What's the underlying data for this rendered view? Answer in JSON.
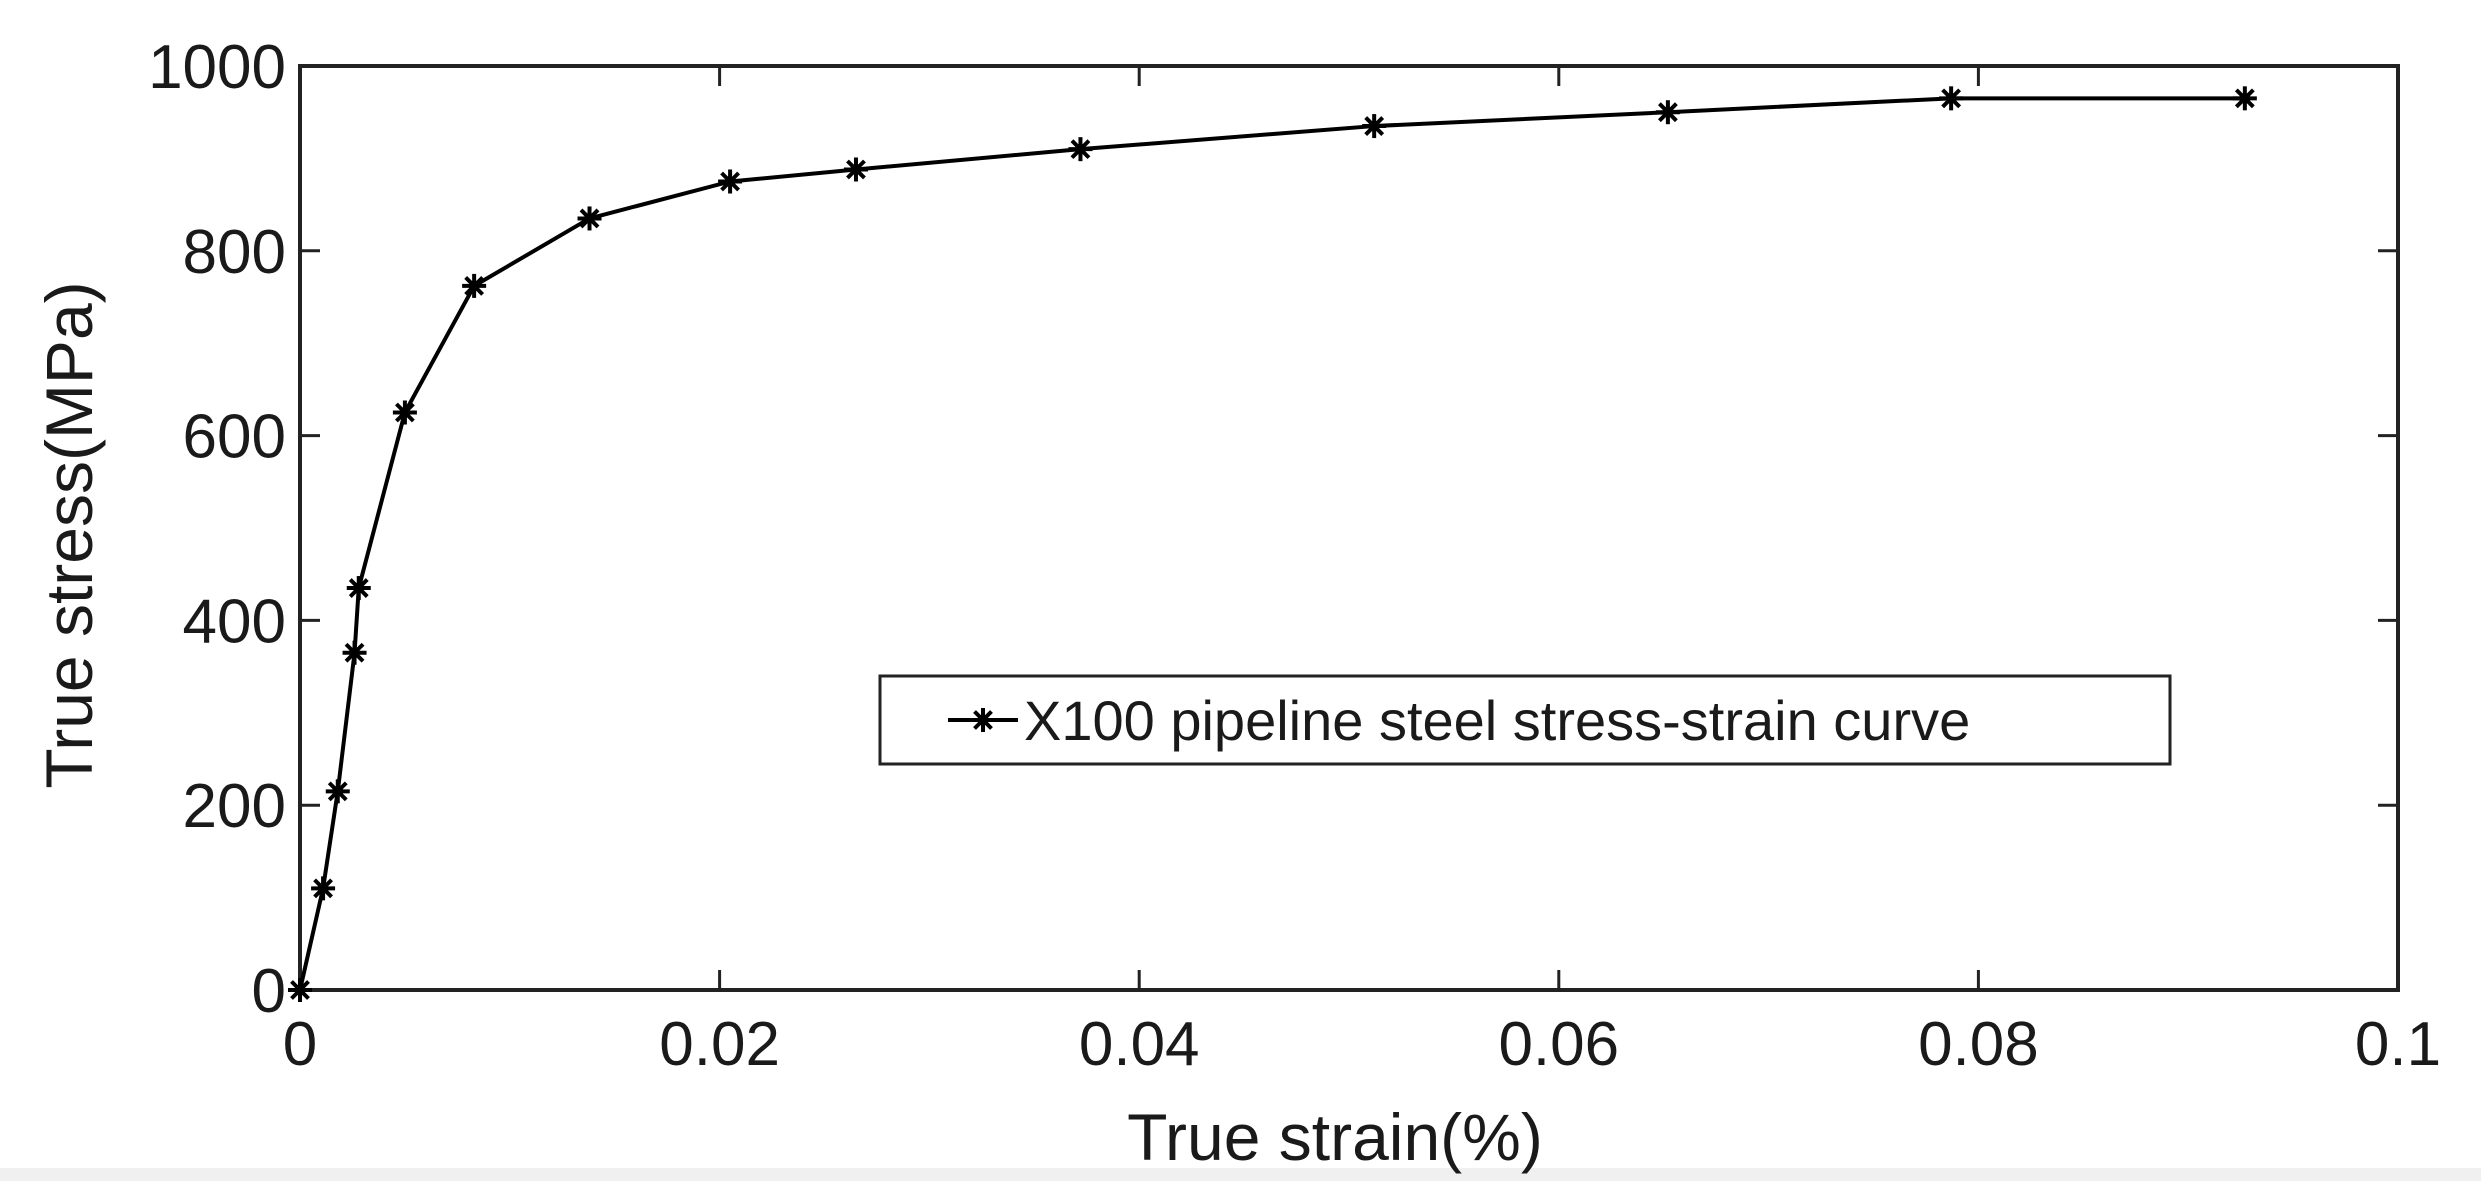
{
  "chart_data": {
    "type": "line",
    "xlabel": "True strain(%)",
    "ylabel": "True stress(MPa)",
    "xlim": [
      0,
      0.1
    ],
    "ylim": [
      0,
      1000
    ],
    "x_ticks": [
      "0",
      "0.02",
      "0.04",
      "0.06",
      "0.08",
      "0.1"
    ],
    "y_ticks": [
      "0",
      "200",
      "400",
      "600",
      "800",
      "1000"
    ],
    "grid": false,
    "legend_position": "center-right",
    "series": [
      {
        "name": "X100 pipeline steel stress-strain curve",
        "color": "#000000",
        "marker": "asterisk",
        "x": [
          0,
          0.0011,
          0.0018,
          0.0026,
          0.0028,
          0.005,
          0.0083,
          0.0138,
          0.0205,
          0.0265,
          0.0372,
          0.0512,
          0.0652,
          0.0787,
          0.0927
        ],
        "y": [
          0,
          110,
          215,
          365,
          435,
          625,
          762,
          835,
          875,
          888,
          910,
          935,
          950,
          965,
          965
        ]
      }
    ]
  }
}
